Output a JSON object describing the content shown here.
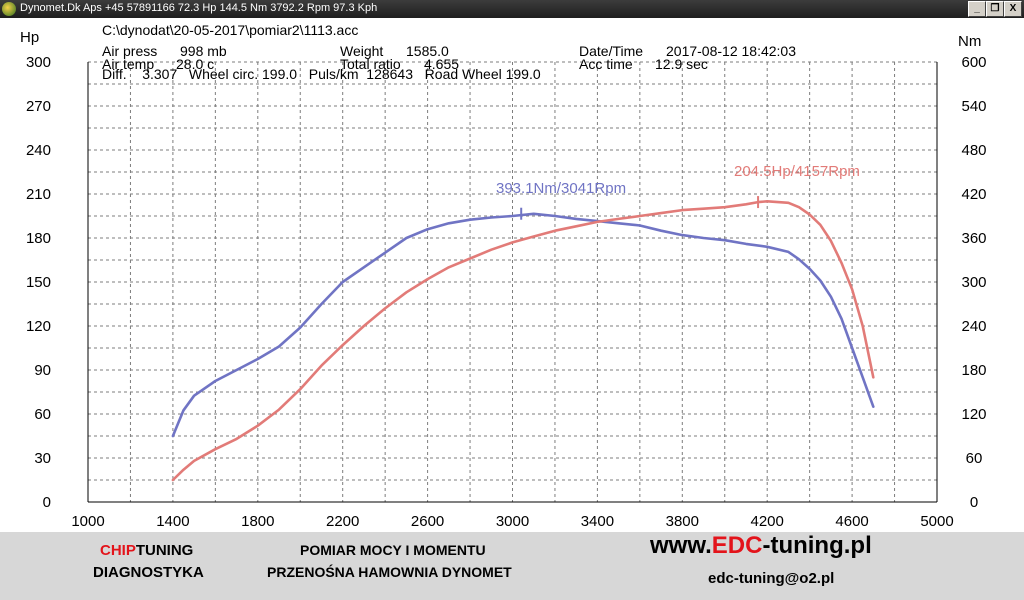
{
  "window": {
    "title": "Dynomet.Dk Aps +45 57891166  72.3 Hp 144.5 Nm 3792.2 Rpm 97.3 Kph",
    "minimize": "_",
    "restore": "❐",
    "close": "X"
  },
  "header": {
    "file": "C:\\dynodat\\20-05-2017\\pomiar2\\1113.acc",
    "line1": [
      {
        "label": "Air press",
        "value": "998 mb"
      },
      {
        "label": "Weight",
        "value": "1585.0"
      },
      {
        "label": "Date/Time",
        "value": "2017-08-12 18:42:03"
      }
    ],
    "line2": [
      {
        "label": "Air temp",
        "value": "28.0 c"
      },
      {
        "label": "Total ratio",
        "value": "4.655"
      },
      {
        "label": "Acc time",
        "value": "12.9 sec"
      }
    ],
    "line3": "Diff.    3.307   Wheel circ. 199.0   Puls/km  128643   Road Wheel 199.0"
  },
  "chart_data": {
    "type": "line",
    "xlabel": "",
    "ylabel": "Hp",
    "y2label": "Nm",
    "xlim": [
      1000,
      5000
    ],
    "ylim": [
      0,
      300
    ],
    "y2lim": [
      0,
      600
    ],
    "grid": true,
    "x_ticks": [
      "1000",
      "1400",
      "1800",
      "2200",
      "2600",
      "3000",
      "3400",
      "3800",
      "4200",
      "4600",
      "5000"
    ],
    "y_ticks": [
      "0",
      "30",
      "60",
      "90",
      "120",
      "150",
      "180",
      "210",
      "240",
      "270",
      "300"
    ],
    "y2_ticks": [
      "0",
      "60",
      "120",
      "180",
      "240",
      "300",
      "360",
      "420",
      "480",
      "540",
      "600"
    ],
    "series": [
      {
        "name": "",
        "axis": "right",
        "unit": "Nm",
        "color": "#7074c4",
        "x": [
          1400,
          1450,
          1500,
          1600,
          1700,
          1800,
          1900,
          2000,
          2100,
          2200,
          2300,
          2400,
          2500,
          2600,
          2700,
          2800,
          2900,
          3000,
          3100,
          3200,
          3300,
          3400,
          3500,
          3600,
          3700,
          3800,
          3900,
          4000,
          4100,
          4200,
          4300,
          4350,
          4400,
          4450,
          4500,
          4550,
          4600,
          4650,
          4700
        ],
        "values": [
          90,
          125,
          145,
          165,
          180,
          195,
          212,
          238,
          270,
          300,
          320,
          340,
          360,
          372,
          380,
          385,
          388,
          390,
          393,
          390,
          386,
          383,
          380,
          377,
          370,
          364,
          360,
          357,
          352,
          348,
          341,
          331,
          318,
          302,
          280,
          250,
          210,
          170,
          130
        ]
      },
      {
        "name": "",
        "axis": "left",
        "unit": "Hp",
        "color": "#e27b78",
        "x": [
          1400,
          1450,
          1500,
          1600,
          1700,
          1800,
          1900,
          2000,
          2100,
          2200,
          2300,
          2400,
          2500,
          2600,
          2700,
          2800,
          2900,
          3000,
          3100,
          3200,
          3300,
          3400,
          3500,
          3600,
          3700,
          3800,
          3900,
          4000,
          4100,
          4157,
          4200,
          4300,
          4350,
          4400,
          4450,
          4500,
          4550,
          4600,
          4650,
          4700
        ],
        "values": [
          15,
          22,
          28,
          36,
          43,
          52,
          63,
          77,
          93,
          107,
          120,
          132,
          143,
          152,
          160,
          166,
          172,
          177,
          181,
          185,
          188,
          191,
          193,
          195,
          197,
          199,
          200,
          201,
          203,
          204.5,
          205,
          204,
          201,
          196,
          189,
          178,
          163,
          145,
          120,
          85
        ]
      }
    ],
    "annotations": [
      {
        "text": "393.1Nm/3041Rpm",
        "color": "#7074c4",
        "x": 3041,
        "y2": 393.1
      },
      {
        "text": "204.5Hp/4157Rpm",
        "color": "#e27b78",
        "x": 4157,
        "y": 204.5
      }
    ]
  },
  "footer": {
    "chip_red": "CHIP",
    "chip_black": "TUNING",
    "diag": "DIAGNOSTYKA",
    "mid1": "POMIAR MOCY I MOMENTU",
    "mid2": "PRZENOŚNA HAMOWNIA DYNOMET",
    "url_a": "www.",
    "url_b": "EDC",
    "url_c": "-tuning.pl",
    "email": "edc-tuning@o2.pl"
  }
}
